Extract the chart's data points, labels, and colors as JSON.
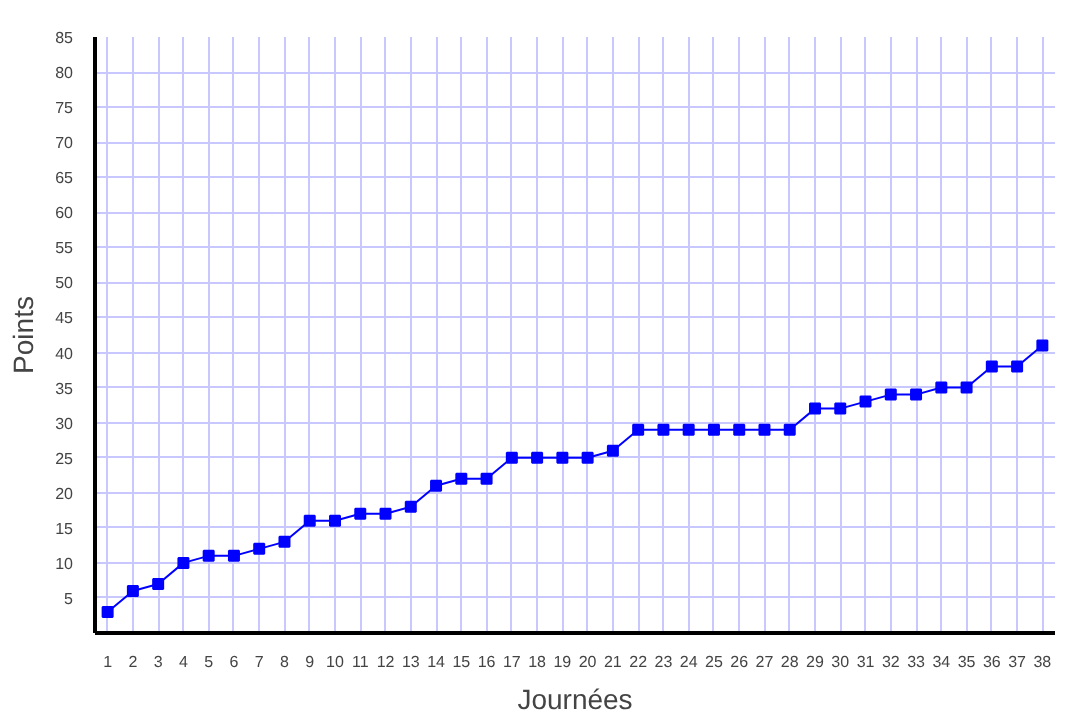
{
  "chart_data": {
    "type": "line",
    "xlabel": "Journées",
    "ylabel": "Points",
    "x": [
      1,
      2,
      3,
      4,
      5,
      6,
      7,
      8,
      9,
      10,
      11,
      12,
      13,
      14,
      15,
      16,
      17,
      18,
      19,
      20,
      21,
      22,
      23,
      24,
      25,
      26,
      27,
      28,
      29,
      30,
      31,
      32,
      33,
      34,
      35,
      36,
      37,
      38
    ],
    "series": [
      {
        "color": "#0000ff",
        "values": [
          3,
          6,
          7,
          10,
          11,
          11,
          12,
          13,
          16,
          16,
          17,
          17,
          18,
          21,
          22,
          22,
          25,
          25,
          25,
          25,
          26,
          29,
          29,
          29,
          29,
          29,
          29,
          29,
          32,
          32,
          33,
          34,
          34,
          35,
          35,
          38,
          38,
          41
        ]
      }
    ],
    "xlim": [
      0.5,
      38.5
    ],
    "ylim": [
      0,
      85
    ],
    "xticks": [
      1,
      2,
      3,
      4,
      5,
      6,
      7,
      8,
      9,
      10,
      11,
      12,
      13,
      14,
      15,
      16,
      17,
      18,
      19,
      20,
      21,
      22,
      23,
      24,
      25,
      26,
      27,
      28,
      29,
      30,
      31,
      32,
      33,
      34,
      35,
      36,
      37,
      38
    ],
    "yticks": [
      5,
      10,
      15,
      20,
      25,
      30,
      35,
      40,
      45,
      50,
      55,
      60,
      65,
      70,
      75,
      80,
      85
    ],
    "grid": true,
    "marker": "square",
    "line_style": "solid"
  }
}
